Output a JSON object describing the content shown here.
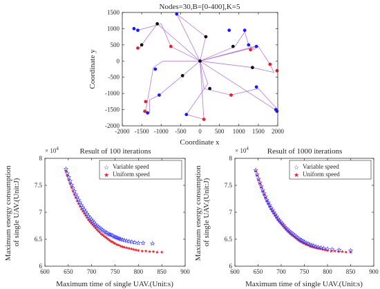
{
  "chart_data": [
    {
      "type": "scatter",
      "title": "Nodes=30,B=[0-400],K=5",
      "xlabel": "Coordinate x",
      "ylabel": "Coordinate y",
      "xlim": [
        -2000,
        2000
      ],
      "ylim": [
        -2000,
        1500
      ],
      "xticks": [
        -2000,
        -1500,
        -1000,
        -500,
        0,
        500,
        1000,
        1500,
        2000
      ],
      "yticks": [
        -2000,
        -1500,
        -1000,
        -500,
        0,
        500,
        1000,
        1500
      ],
      "grid": false,
      "colors": {
        "blue": "#1a1aff",
        "red": "#e8202a",
        "black": "#111111",
        "route": "#b57ad8"
      },
      "depot": [
        0,
        0
      ],
      "routes": [
        [
          [
            0,
            0
          ],
          [
            -750,
            450
          ],
          [
            -1000,
            1150
          ],
          [
            -1600,
            950
          ],
          [
            -1700,
            1000
          ]
        ],
        [
          [
            0,
            0
          ],
          [
            -1100,
            1150
          ],
          [
            -1500,
            500
          ],
          [
            -1550,
            400
          ]
        ],
        [
          [
            0,
            0
          ],
          [
            -600,
            1450
          ],
          [
            150,
            750
          ],
          [
            0,
            0
          ]
        ],
        [
          [
            0,
            0
          ],
          [
            -450,
            -450
          ],
          [
            -1050,
            -1050
          ],
          [
            -1300,
            -1200
          ],
          [
            -1300,
            -1600
          ],
          [
            -1400,
            -1550
          ],
          [
            -1200,
            -200
          ],
          [
            -950,
            0
          ],
          [
            0,
            0
          ]
        ],
        [
          [
            0,
            0
          ],
          [
            100,
            -850
          ],
          [
            800,
            -1050
          ],
          [
            1500,
            -850
          ],
          [
            2000,
            -1500
          ],
          [
            2000,
            -1550
          ],
          [
            0,
            0
          ]
        ],
        [
          [
            0,
            0
          ],
          [
            200,
            -700
          ],
          [
            -350,
            -1650
          ],
          [
            100,
            -1800
          ],
          [
            0,
            0
          ]
        ],
        [
          [
            0,
            0
          ],
          [
            900,
            450
          ],
          [
            1150,
            900
          ],
          [
            1250,
            500
          ],
          [
            1400,
            350
          ],
          [
            1450,
            450
          ],
          [
            1400,
            450
          ],
          [
            0,
            0
          ]
        ],
        [
          [
            0,
            0
          ],
          [
            1350,
            -200
          ],
          [
            1900,
            -350
          ],
          [
            1800,
            -100
          ],
          [
            1500,
            450
          ],
          [
            0,
            0
          ]
        ]
      ],
      "points": {
        "blue": [
          [
            -1700,
            1000
          ],
          [
            -1600,
            950
          ],
          [
            -1150,
            -250
          ],
          [
            -1050,
            -1050
          ],
          [
            -1350,
            -1600
          ],
          [
            -600,
            1450
          ],
          [
            750,
            950
          ],
          [
            1150,
            950
          ],
          [
            1250,
            500
          ],
          [
            1450,
            450
          ],
          [
            1450,
            -800
          ],
          [
            -350,
            -1650
          ],
          [
            1950,
            -1500
          ],
          [
            1980,
            -1550
          ]
        ],
        "red": [
          [
            -1600,
            400
          ],
          [
            -1400,
            -1250
          ],
          [
            -1420,
            -1550
          ],
          [
            -750,
            450
          ],
          [
            800,
            -1050
          ],
          [
            1300,
            350
          ],
          [
            1800,
            -100
          ],
          [
            1980,
            -300
          ],
          [
            100,
            -1800
          ]
        ],
        "black": [
          [
            -1500,
            500
          ],
          [
            -1100,
            1150
          ],
          [
            150,
            750
          ],
          [
            -450,
            -450
          ],
          [
            0,
            0
          ],
          [
            850,
            450
          ],
          [
            1350,
            -200
          ],
          [
            250,
            -850
          ]
        ]
      }
    },
    {
      "type": "scatter",
      "title": "Result of 100 iterations",
      "xlabel": "Maximum time of single UAV.(Unit:s)",
      "ylabel": "Maximum energy consumption of single UAV.(Unit:J)",
      "ylabel_lines": [
        "Maximum energy consumption",
        "of single UAV.(Unit:J)"
      ],
      "exponent": "× 10",
      "exponent_power": "4",
      "xlim": [
        600,
        900
      ],
      "ylim": [
        6.0,
        8.0
      ],
      "xticks": [
        600,
        650,
        700,
        750,
        800,
        850,
        900
      ],
      "yticks": [
        6,
        6.5,
        7,
        7.5,
        8
      ],
      "grid": false,
      "legend_position": "top-right",
      "series": [
        {
          "name": "Variable speed",
          "marker": "star-outline",
          "color": "#3333ff",
          "x": [
            645,
            648,
            651,
            654,
            657,
            660,
            663,
            666,
            669,
            672,
            675,
            678,
            681,
            684,
            687,
            690,
            693,
            696,
            699,
            702,
            705,
            708,
            711,
            714,
            717,
            720,
            723,
            726,
            729,
            732,
            735,
            738,
            741,
            744,
            747,
            750,
            753,
            756,
            759,
            762,
            766,
            770,
            775,
            780,
            786,
            792,
            800,
            810,
            830
          ],
          "y": [
            7.8,
            7.72,
            7.65,
            7.58,
            7.51,
            7.45,
            7.39,
            7.33,
            7.28,
            7.23,
            7.18,
            7.13,
            7.09,
            7.05,
            7.01,
            6.97,
            6.93,
            6.9,
            6.87,
            6.84,
            6.81,
            6.78,
            6.75,
            6.73,
            6.71,
            6.69,
            6.67,
            6.65,
            6.63,
            6.62,
            6.6,
            6.59,
            6.58,
            6.57,
            6.55,
            6.54,
            6.53,
            6.52,
            6.51,
            6.5,
            6.49,
            6.48,
            6.47,
            6.46,
            6.45,
            6.44,
            6.43,
            6.43,
            6.42
          ]
        },
        {
          "name": "Uniform speed",
          "marker": "star-filled",
          "color": "#e8202a",
          "x": [
            645,
            648,
            651,
            654,
            657,
            660,
            663,
            666,
            669,
            672,
            675,
            678,
            681,
            684,
            687,
            690,
            693,
            696,
            699,
            702,
            705,
            708,
            711,
            714,
            717,
            720,
            723,
            726,
            729,
            732,
            735,
            738,
            741,
            744,
            747,
            750,
            754,
            758,
            762,
            766,
            770,
            775,
            780,
            785,
            790,
            795,
            800,
            808,
            816,
            824,
            832,
            840,
            850
          ],
          "y": [
            7.76,
            7.68,
            7.6,
            7.53,
            7.46,
            7.39,
            7.33,
            7.27,
            7.21,
            7.16,
            7.11,
            7.06,
            7.02,
            6.98,
            6.94,
            6.9,
            6.86,
            6.83,
            6.8,
            6.77,
            6.74,
            6.71,
            6.68,
            6.65,
            6.63,
            6.6,
            6.58,
            6.56,
            6.54,
            6.52,
            6.5,
            6.48,
            6.46,
            6.45,
            6.43,
            6.42,
            6.4,
            6.39,
            6.37,
            6.36,
            6.35,
            6.34,
            6.33,
            6.32,
            6.31,
            6.3,
            6.29,
            6.28,
            6.28,
            6.27,
            6.27,
            6.26,
            6.26
          ]
        }
      ]
    },
    {
      "type": "scatter",
      "title": "Result of 1000 iterations",
      "xlabel": "Maximum time of single UAV.(Unit:s)",
      "ylabel": "Maximum energy consumption of single UAV.(Unit:J)",
      "ylabel_lines": [
        "Maximum energy consumption",
        "of single UAV.(Unit:J)"
      ],
      "exponent": "× 10",
      "exponent_power": "4",
      "xlim": [
        600,
        900
      ],
      "ylim": [
        6.0,
        8.0
      ],
      "xticks": [
        600,
        650,
        700,
        750,
        800,
        850,
        900
      ],
      "yticks": [
        6,
        6.5,
        7,
        7.5,
        8
      ],
      "grid": false,
      "legend_position": "top-right",
      "series": [
        {
          "name": "Variable speed",
          "marker": "star-outline",
          "color": "#3333ff",
          "x": [
            645,
            648,
            651,
            654,
            657,
            660,
            663,
            666,
            669,
            672,
            675,
            678,
            681,
            684,
            687,
            690,
            693,
            696,
            699,
            702,
            705,
            708,
            711,
            714,
            717,
            720,
            723,
            726,
            729,
            732,
            735,
            738,
            741,
            744,
            747,
            750,
            754,
            758,
            762,
            766,
            770,
            775,
            780,
            786,
            792,
            800,
            810,
            825,
            850
          ],
          "y": [
            7.78,
            7.7,
            7.62,
            7.55,
            7.48,
            7.41,
            7.35,
            7.29,
            7.23,
            7.18,
            7.13,
            7.08,
            7.04,
            7.0,
            6.96,
            6.92,
            6.88,
            6.85,
            6.82,
            6.79,
            6.76,
            6.73,
            6.7,
            6.68,
            6.65,
            6.63,
            6.61,
            6.59,
            6.57,
            6.55,
            6.53,
            6.51,
            6.49,
            6.48,
            6.46,
            6.45,
            6.43,
            6.42,
            6.4,
            6.39,
            6.38,
            6.36,
            6.35,
            6.34,
            6.33,
            6.32,
            6.31,
            6.3,
            6.29
          ]
        },
        {
          "name": "Uniform speed",
          "marker": "star-filled",
          "color": "#e8202a",
          "x": [
            645,
            648,
            651,
            654,
            657,
            660,
            663,
            666,
            669,
            672,
            675,
            678,
            681,
            684,
            687,
            690,
            693,
            696,
            699,
            702,
            705,
            708,
            711,
            714,
            717,
            720,
            723,
            726,
            729,
            732,
            735,
            738,
            741,
            744,
            747,
            750,
            754,
            758,
            762,
            766,
            770,
            775,
            780,
            785,
            790,
            795,
            800,
            808,
            816,
            824,
            832,
            840,
            850
          ],
          "y": [
            7.76,
            7.68,
            7.6,
            7.53,
            7.46,
            7.39,
            7.33,
            7.27,
            7.21,
            7.16,
            7.11,
            7.06,
            7.02,
            6.98,
            6.94,
            6.9,
            6.86,
            6.83,
            6.8,
            6.77,
            6.74,
            6.71,
            6.68,
            6.65,
            6.63,
            6.6,
            6.58,
            6.56,
            6.54,
            6.52,
            6.5,
            6.48,
            6.46,
            6.45,
            6.43,
            6.42,
            6.4,
            6.39,
            6.37,
            6.36,
            6.35,
            6.34,
            6.33,
            6.32,
            6.31,
            6.3,
            6.29,
            6.28,
            6.28,
            6.27,
            6.27,
            6.26,
            6.26
          ]
        }
      ]
    }
  ]
}
